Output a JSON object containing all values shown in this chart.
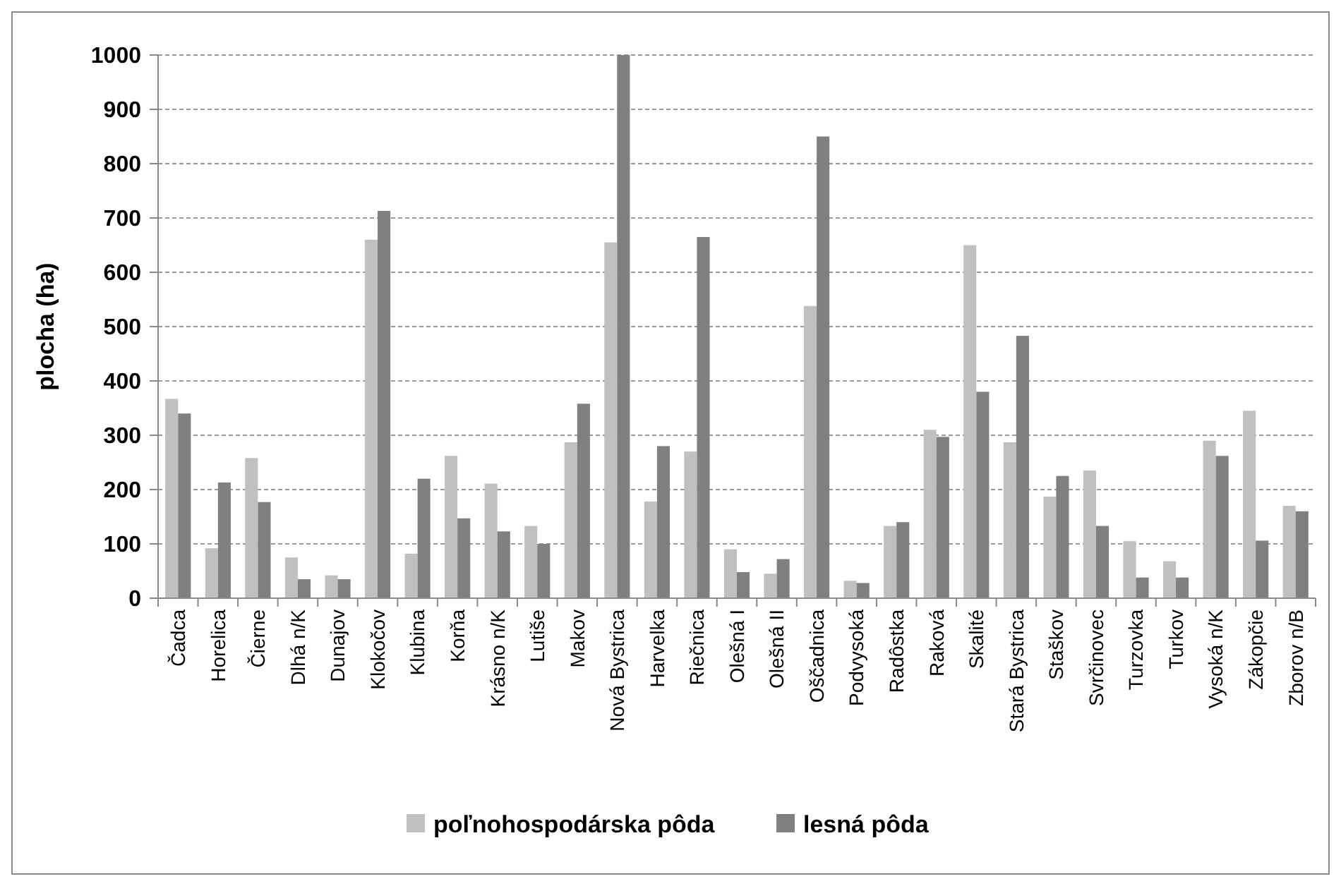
{
  "chart_data": {
    "type": "bar",
    "ylabel": "plocha (ha)",
    "categories": [
      "Čadca",
      "Horelica",
      "Čierne",
      "Dlhá n/K",
      "Dunajov",
      "Klokočov",
      "Klubina",
      "Korňa",
      "Krásno n/K",
      "Lutiše",
      "Makov",
      "Nová Bystrica",
      "Harvelka",
      "Riečnica",
      "Olešná I",
      "Olešná II",
      "Oščadnica",
      "Podvysoká",
      "Radôstka",
      "Raková",
      "Skalité",
      "Stará Bystrica",
      "Staškov",
      "Svrčinovec",
      "Turzovka",
      "Turkov",
      "Vysoká n/K",
      "Zákopčie",
      "Zborov n/B"
    ],
    "series": [
      {
        "name": "poľnohospodárska pôda",
        "color": "#c0c0c0",
        "values": [
          367,
          92,
          258,
          75,
          42,
          660,
          82,
          262,
          211,
          133,
          287,
          655,
          178,
          270,
          90,
          45,
          538,
          32,
          133,
          310,
          650,
          287,
          187,
          235,
          105,
          68,
          290,
          345,
          170
        ]
      },
      {
        "name": "lesná pôda",
        "color": "#808080",
        "values": [
          340,
          213,
          177,
          35,
          35,
          713,
          220,
          147,
          123,
          100,
          358,
          1000,
          280,
          665,
          48,
          72,
          850,
          28,
          140,
          297,
          380,
          483,
          225,
          133,
          38,
          38,
          262,
          106,
          160
        ]
      }
    ],
    "ylim": [
      0,
      1000
    ],
    "yticks": [
      0,
      100,
      200,
      300,
      400,
      500,
      600,
      700,
      800,
      900,
      1000
    ],
    "grid": "y",
    "legend": "bottom"
  }
}
